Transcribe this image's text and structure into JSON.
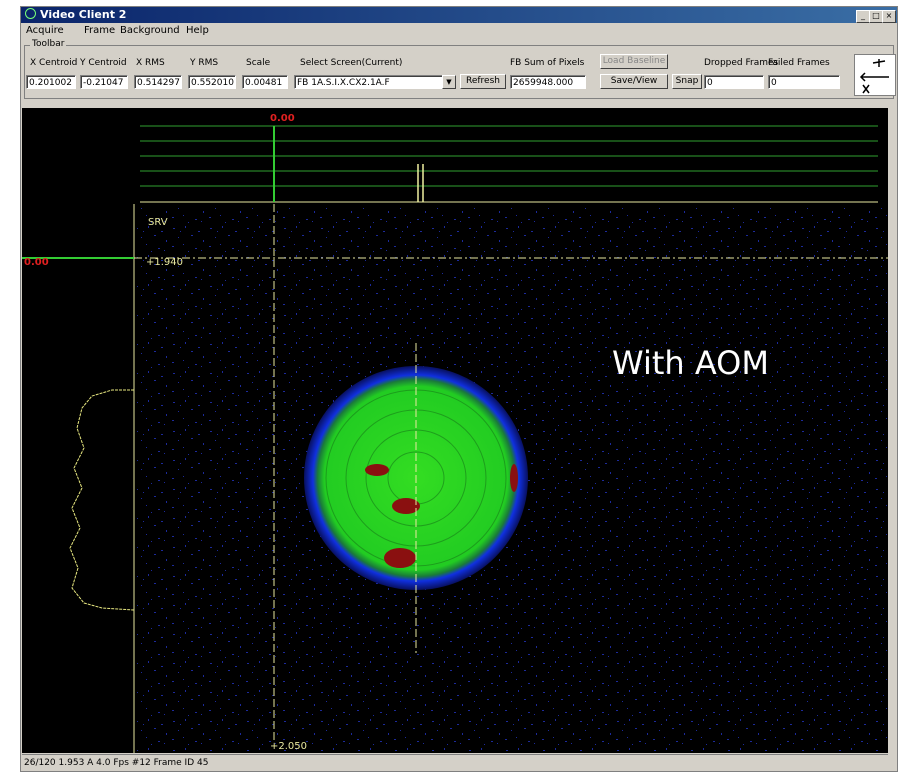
{
  "window": {
    "title": "Video Client 2"
  },
  "menu": [
    "Acquire",
    "Frame",
    "Background",
    "Help"
  ],
  "toolbar": {
    "group_label": "Toolbar",
    "fields": [
      {
        "label": "X Centroid",
        "value": "0.201002"
      },
      {
        "label": "Y Centroid",
        "value": "-0.21047"
      },
      {
        "label": "X RMS",
        "value": "0.514297"
      },
      {
        "label": "Y RMS",
        "value": "0.552010"
      },
      {
        "label": "Scale",
        "value": "0.00481"
      }
    ],
    "select_label": "Select Screen(Current)",
    "select_value": "FB 1A.S.I.X.CX2.1A.F",
    "refresh": "Refresh",
    "sum_label": "FB Sum of Pixels",
    "sum_value": "2659948.000",
    "load_baseline": "Load Baseline",
    "save_view": "Save/View",
    "snap": "Snap",
    "dropped_label": "Dropped Frames",
    "dropped_value": "0",
    "failed_label": "Failed Frames",
    "failed_value": "0"
  },
  "display": {
    "top_marker": "0.00",
    "left_marker": "0.00",
    "screen_label": "SRV",
    "y_top": "+1.940",
    "y_bottom": "+2.050",
    "annotation": "With AOM"
  },
  "status": "26/120 1.953 A 4.0 Fps #12 Frame ID 45"
}
